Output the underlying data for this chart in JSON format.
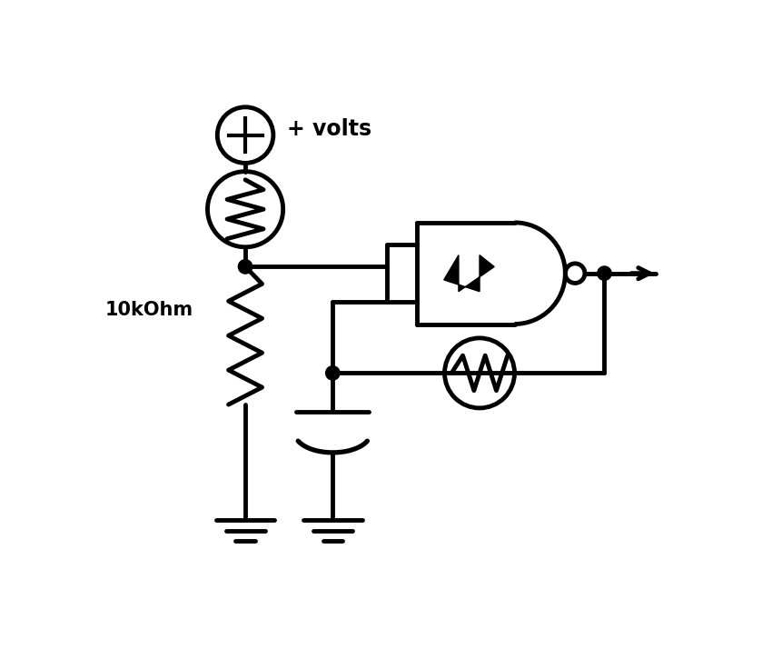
{
  "bg_color": "#ffffff",
  "lc": "#000000",
  "lw": 3.5,
  "title": "+ volts",
  "label": "10kOhm",
  "title_fontsize": 17,
  "label_fontsize": 15
}
